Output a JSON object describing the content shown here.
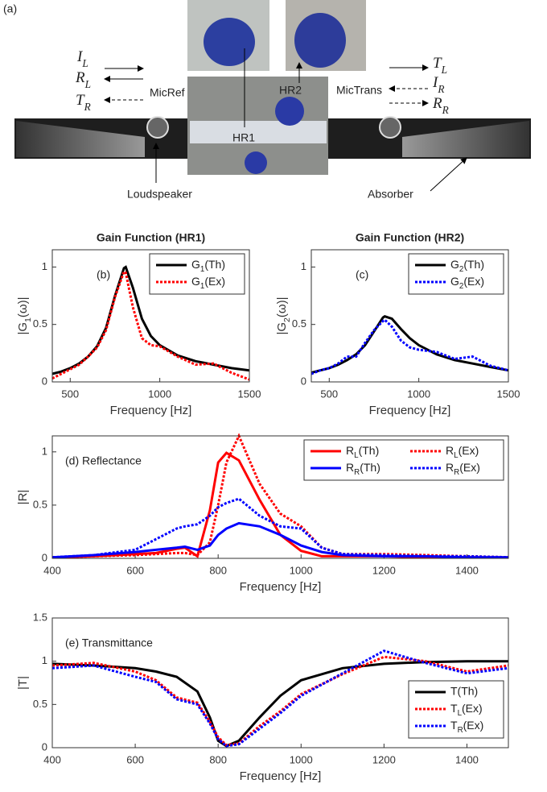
{
  "panel_a": {
    "label": "(a)",
    "arrows_left": [
      "IL",
      "RL",
      "TR"
    ],
    "arrows_right": [
      "TL",
      "IR",
      "RR"
    ],
    "mic_ref": "MicRef",
    "hr2": "HR2",
    "mic_trans": "MicTrans",
    "hr1": "HR1",
    "loudspeaker": "Loudspeaker",
    "absorber": "Absorber"
  },
  "chart_data": [
    {
      "type": "line",
      "title": "Gain Function (HR1)",
      "annotation": "(b)",
      "x_label": "Frequency [Hz]",
      "y_label": "|G1(ω)|",
      "xlim": [
        400,
        1500
      ],
      "xticks": [
        500,
        1000,
        1500
      ],
      "ylim": [
        0,
        1.15
      ],
      "yticks": [
        0,
        0.5,
        1
      ],
      "x": [
        400,
        450,
        500,
        550,
        600,
        650,
        700,
        750,
        800,
        810,
        850,
        900,
        950,
        1000,
        1100,
        1200,
        1300,
        1400,
        1500
      ],
      "legend": {
        "location": "northeast",
        "columns": 1
      },
      "series": [
        {
          "name": "G1(Th)",
          "color": "#000000",
          "style": "solid",
          "values": [
            0.07,
            0.09,
            0.12,
            0.16,
            0.22,
            0.31,
            0.47,
            0.75,
            0.99,
            1.0,
            0.82,
            0.55,
            0.4,
            0.32,
            0.23,
            0.18,
            0.15,
            0.12,
            0.1
          ]
        },
        {
          "name": "G1(Ex)",
          "color": "#ff0000",
          "style": "dotted",
          "values": [
            0.03,
            0.07,
            0.11,
            0.15,
            0.22,
            0.3,
            0.45,
            0.74,
            0.96,
            0.95,
            0.65,
            0.38,
            0.32,
            0.31,
            0.22,
            0.15,
            0.16,
            0.08,
            0.02
          ]
        }
      ]
    },
    {
      "type": "line",
      "title": "Gain Function (HR2)",
      "annotation": "(c)",
      "x_label": "Frequency [Hz]",
      "y_label": "|G2(ω)|",
      "xlim": [
        400,
        1500
      ],
      "xticks": [
        500,
        1000,
        1500
      ],
      "ylim": [
        0,
        1.15
      ],
      "yticks": [
        0,
        0.5,
        1
      ],
      "x": [
        400,
        450,
        500,
        550,
        600,
        650,
        700,
        750,
        800,
        810,
        850,
        900,
        950,
        1000,
        1100,
        1200,
        1300,
        1400,
        1500
      ],
      "legend": {
        "location": "northeast",
        "columns": 1
      },
      "series": [
        {
          "name": "G2(Th)",
          "color": "#000000",
          "style": "solid",
          "values": [
            0.08,
            0.1,
            0.12,
            0.15,
            0.19,
            0.24,
            0.32,
            0.44,
            0.56,
            0.57,
            0.55,
            0.46,
            0.38,
            0.32,
            0.24,
            0.19,
            0.16,
            0.13,
            0.1
          ]
        },
        {
          "name": "G2(Ex)",
          "color": "#0000ff",
          "style": "dotted",
          "values": [
            0.07,
            0.1,
            0.12,
            0.16,
            0.22,
            0.22,
            0.34,
            0.45,
            0.53,
            0.54,
            0.48,
            0.36,
            0.3,
            0.28,
            0.26,
            0.2,
            0.22,
            0.14,
            0.1
          ]
        }
      ]
    },
    {
      "type": "line",
      "annotation": "(d) Reflectance",
      "x_label": "Frequency [Hz]",
      "y_label": "|R|",
      "xlim": [
        400,
        1500
      ],
      "xticks": [
        400,
        600,
        800,
        1000,
        1200,
        1400
      ],
      "ylim": [
        0,
        1.15
      ],
      "yticks": [
        0,
        0.5,
        1
      ],
      "x": [
        400,
        500,
        600,
        650,
        700,
        720,
        750,
        780,
        800,
        820,
        850,
        900,
        950,
        1000,
        1050,
        1100,
        1200,
        1300,
        1400,
        1500
      ],
      "legend": {
        "location": "northeast",
        "columns": 2
      },
      "series": [
        {
          "name": "RL(Th)",
          "color": "#ff0000",
          "style": "solid",
          "values": [
            0.01,
            0.02,
            0.04,
            0.05,
            0.09,
            0.1,
            0.02,
            0.45,
            0.9,
            0.99,
            0.92,
            0.55,
            0.22,
            0.07,
            0.02,
            0.02,
            0.02,
            0.01,
            0.01,
            0.01
          ]
        },
        {
          "name": "RL(Ex)",
          "color": "#ff0000",
          "style": "dotted",
          "values": [
            0.01,
            0.02,
            0.03,
            0.04,
            0.05,
            0.05,
            0.03,
            0.15,
            0.5,
            0.9,
            1.15,
            0.7,
            0.42,
            0.3,
            0.1,
            0.04,
            0.04,
            0.03,
            0.02,
            0.01
          ]
        },
        {
          "name": "RR(Th)",
          "color": "#0000ff",
          "style": "solid",
          "values": [
            0.01,
            0.03,
            0.06,
            0.08,
            0.1,
            0.11,
            0.08,
            0.12,
            0.22,
            0.28,
            0.33,
            0.3,
            0.22,
            0.12,
            0.06,
            0.03,
            0.02,
            0.02,
            0.01,
            0.01
          ]
        },
        {
          "name": "RR(Ex)",
          "color": "#0000ff",
          "style": "dotted",
          "values": [
            0.01,
            0.03,
            0.08,
            0.18,
            0.28,
            0.3,
            0.32,
            0.4,
            0.48,
            0.52,
            0.56,
            0.4,
            0.3,
            0.28,
            0.1,
            0.04,
            0.03,
            0.02,
            0.02,
            0.01
          ]
        }
      ]
    },
    {
      "type": "line",
      "annotation": "(e) Transmittance",
      "x_label": "Frequency [Hz]",
      "y_label": "|T|",
      "xlim": [
        400,
        1500
      ],
      "xticks": [
        400,
        600,
        800,
        1000,
        1200,
        1400
      ],
      "ylim": [
        0,
        1.5
      ],
      "yticks": [
        0,
        0.5,
        1,
        1.5
      ],
      "x": [
        400,
        500,
        600,
        650,
        700,
        750,
        780,
        800,
        820,
        850,
        900,
        950,
        1000,
        1100,
        1200,
        1300,
        1400,
        1500
      ],
      "legend": {
        "location": "southeast",
        "columns": 1
      },
      "series": [
        {
          "name": "T(Th)",
          "color": "#000000",
          "style": "solid",
          "values": [
            0.97,
            0.95,
            0.92,
            0.88,
            0.82,
            0.65,
            0.35,
            0.08,
            0.02,
            0.08,
            0.35,
            0.6,
            0.78,
            0.92,
            0.97,
            0.99,
            1.0,
            1.0
          ]
        },
        {
          "name": "TL(Ex)",
          "color": "#ff0000",
          "style": "dotted",
          "values": [
            0.95,
            0.98,
            0.88,
            0.78,
            0.58,
            0.52,
            0.3,
            0.12,
            0.03,
            0.05,
            0.25,
            0.42,
            0.62,
            0.85,
            1.05,
            1.0,
            0.88,
            0.95
          ]
        },
        {
          "name": "TR(Ex)",
          "color": "#0000ff",
          "style": "dotted",
          "values": [
            0.92,
            0.95,
            0.82,
            0.76,
            0.56,
            0.5,
            0.28,
            0.1,
            0.02,
            0.04,
            0.22,
            0.4,
            0.6,
            0.86,
            1.12,
            0.98,
            0.86,
            0.92
          ]
        }
      ]
    }
  ]
}
